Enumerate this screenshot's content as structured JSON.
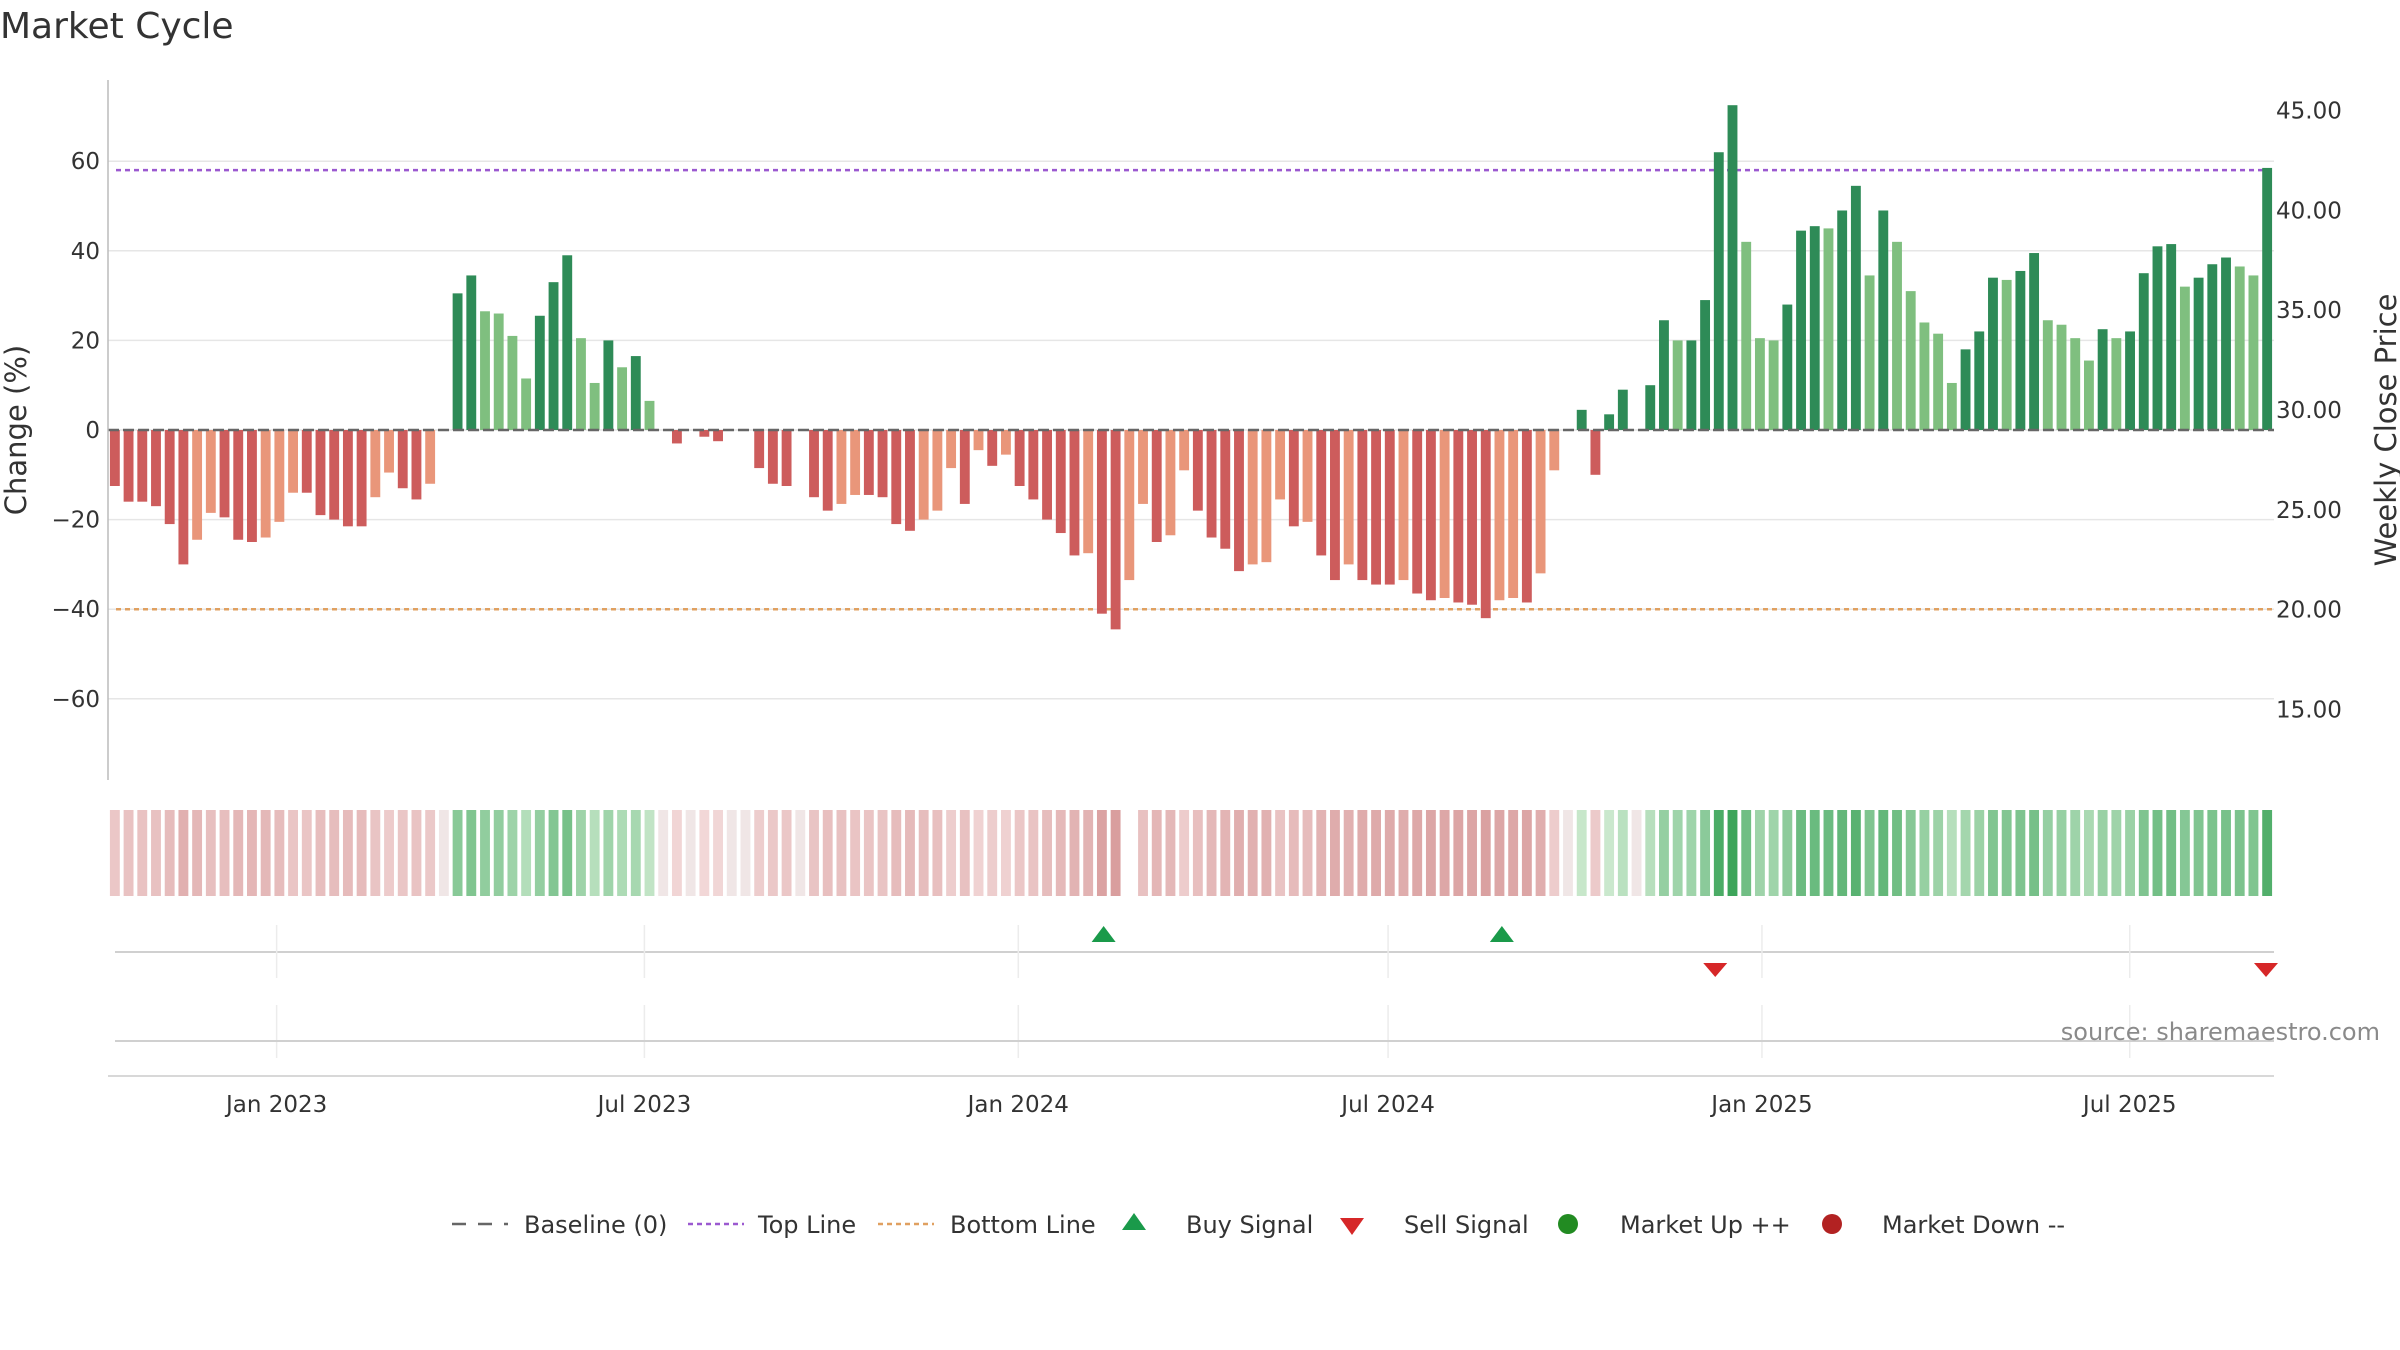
{
  "title": "Market Cycle",
  "source": "source: sharemaestro.com",
  "colors": {
    "strong_up": "#2e8b57",
    "weak_up": "#7fbf7f",
    "strong_down": "#cd5c5c",
    "weak_down": "#e9967a",
    "top_line": "#9b59d0",
    "bottom_line": "#e0a060",
    "baseline": "#666666",
    "buy": "#1a9a4a",
    "sell": "#d62728",
    "market_up": "#228b22",
    "market_down": "#b22222"
  },
  "chart_data": {
    "type": "bar",
    "title": "Market Cycle",
    "ylabel": "Change (%)",
    "y2label": "Weekly Close Price",
    "ylim": [
      -78,
      78
    ],
    "y2lim": [
      11.5,
      46.5
    ],
    "yticks": [
      60,
      40,
      20,
      0,
      -20,
      -40,
      -60
    ],
    "yticklabels": [
      "60",
      "40",
      "20",
      "0",
      "−20",
      "−40",
      "−60"
    ],
    "y2ticks": [
      45,
      40,
      35,
      30,
      25,
      20,
      15
    ],
    "y2ticklabels": [
      "45.00",
      "40.00",
      "35.00",
      "30.00",
      "25.00",
      "20.00",
      "15.00"
    ],
    "xticks": [
      "Jan 2023",
      "Jul 2023",
      "Jan 2024",
      "Jul 2024",
      "Jan 2025",
      "Jul 2025"
    ],
    "x_start": "2022-10-10",
    "x_end": "2025-09-10",
    "top_line": 58,
    "bottom_line": -40,
    "bars": [
      -12.5,
      -16,
      -16,
      -17,
      -21,
      -30,
      -24.5,
      -18.5,
      -19.5,
      -24.5,
      -25,
      -24,
      -20.5,
      -14,
      -14,
      -19,
      -20,
      -21.5,
      -21.5,
      -15,
      -9.5,
      -13,
      -15.5,
      -12,
      0,
      30.5,
      34.5,
      26.5,
      26,
      21,
      11.5,
      25.5,
      33,
      39,
      20.5,
      10.5,
      20,
      14,
      16.5,
      6.5,
      0,
      -3,
      0,
      -1.5,
      -2.5,
      0,
      0,
      -8.5,
      -12,
      -12.5,
      0,
      -15,
      -18,
      -16.5,
      -14.5,
      -14.5,
      -15,
      -21,
      -22.5,
      -20,
      -18,
      -8.5,
      -16.5,
      -4.5,
      -8,
      -5.5,
      -12.5,
      -15.5,
      -20,
      -23,
      -28,
      -27.5,
      -41,
      -44.5,
      -33.5,
      -16.5,
      -25,
      -23.5,
      -9,
      -18,
      -24,
      -26.5,
      -31.5,
      -30,
      -29.5,
      -15.5,
      -21.5,
      -20.5,
      -28,
      -33.5,
      -30,
      -33.5,
      -34.5,
      -34.5,
      -33.5,
      -36.5,
      -38,
      -37.5,
      -38.5,
      -39,
      -42,
      -38,
      -37.5,
      -38.5,
      -32,
      -9,
      0,
      4.5,
      -10,
      3.5,
      9,
      0,
      10,
      24.5,
      20,
      20,
      29,
      62,
      72.5,
      42,
      20.5,
      20,
      28,
      44.5,
      45.5,
      45,
      49,
      54.5,
      34.5,
      49,
      42,
      31,
      24,
      21.5,
      10.5,
      18,
      22,
      34,
      33.5,
      35.5,
      39.5,
      24.5,
      23.5,
      20.5,
      15.5,
      22.5,
      20.5,
      22,
      35,
      41,
      41.5,
      32,
      34,
      37,
      38.5,
      36.5,
      34.5,
      58.5
    ],
    "series": [
      {
        "name": "Baseline (0)",
        "type": "line",
        "value": 0
      },
      {
        "name": "Top Line",
        "type": "line",
        "value": 58
      },
      {
        "name": "Bottom Line",
        "type": "line",
        "value": -40
      }
    ],
    "signals": {
      "buy": [
        "2024-02-12",
        "2024-08-26"
      ],
      "sell": [
        "2024-12-09",
        "2025-09-08"
      ]
    },
    "legend": {
      "placement": "bottom-center",
      "items": [
        {
          "label": "Baseline (0)",
          "kind": "baseline"
        },
        {
          "label": "Top Line",
          "kind": "top_line"
        },
        {
          "label": "Bottom Line",
          "kind": "bottom_line"
        },
        {
          "label": "Buy Signal",
          "kind": "buy"
        },
        {
          "label": "Sell Signal",
          "kind": "sell"
        },
        {
          "label": "Market Up ++",
          "kind": "market_up"
        },
        {
          "label": "Market Down --",
          "kind": "market_down"
        }
      ]
    },
    "grid": true
  }
}
